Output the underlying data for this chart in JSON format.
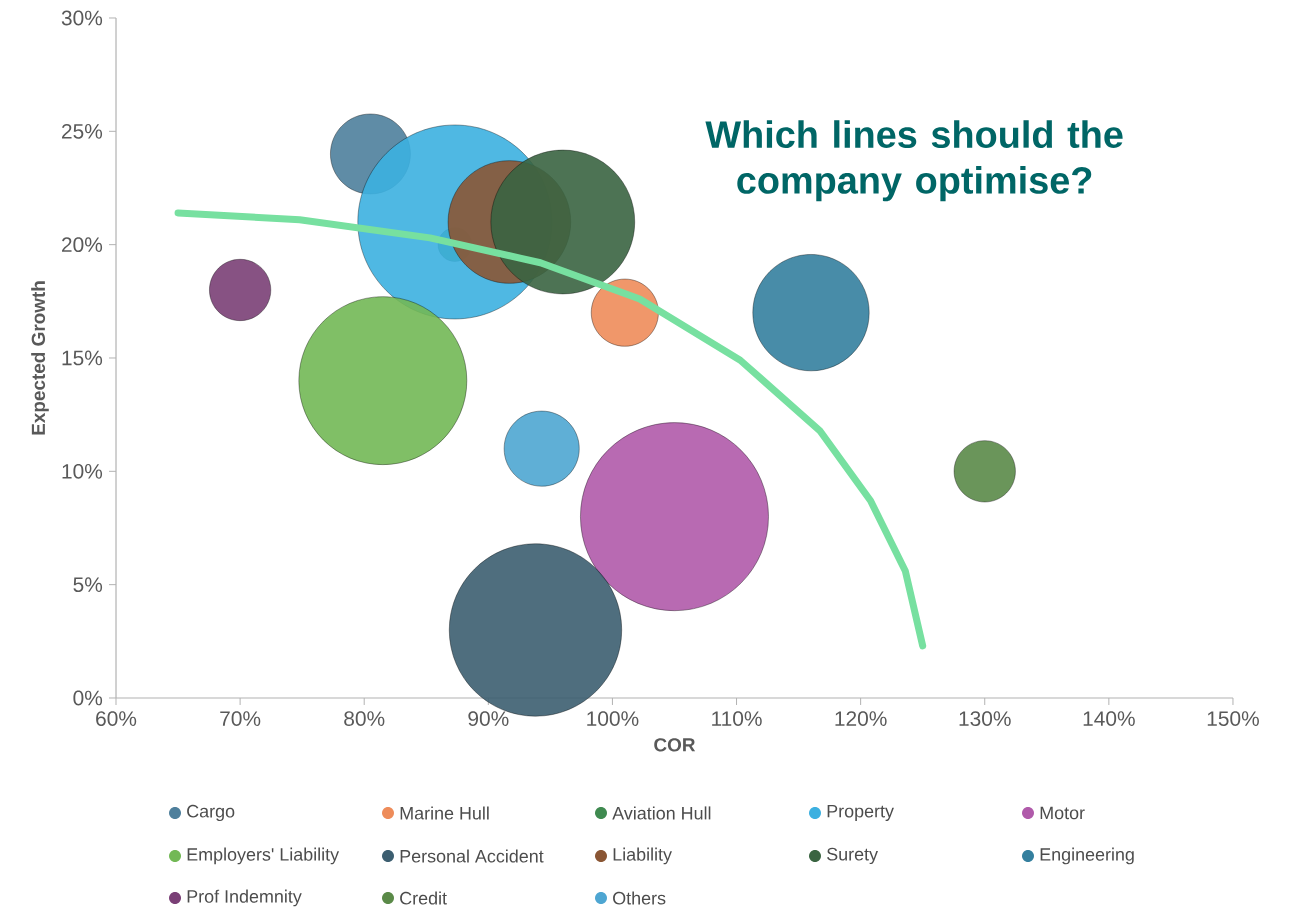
{
  "chart_data": {
    "type": "bubble",
    "xlabel": "COR",
    "ylabel": "Expected Growth",
    "annotations": [
      "Which lines should the company optimise?"
    ],
    "xlim": [
      60,
      150
    ],
    "ylim": [
      0,
      30
    ],
    "xticks": [
      {
        "value": 60,
        "label": "60%"
      },
      {
        "value": 70,
        "label": "70%"
      },
      {
        "value": 80,
        "label": "80%"
      },
      {
        "value": 90,
        "label": "90%"
      },
      {
        "value": 100,
        "label": "100%"
      },
      {
        "value": 110,
        "label": "110%"
      },
      {
        "value": 120,
        "label": "120%"
      },
      {
        "value": 130,
        "label": "130%"
      },
      {
        "value": 140,
        "label": "140%"
      },
      {
        "value": 150,
        "label": "150%"
      }
    ],
    "yticks": [
      {
        "value": 0,
        "label": "0%"
      },
      {
        "value": 5,
        "label": "5%"
      },
      {
        "value": 10,
        "label": "10%"
      },
      {
        "value": 15,
        "label": "15%"
      },
      {
        "value": 20,
        "label": "20%"
      },
      {
        "value": 25,
        "label": "25%"
      },
      {
        "value": 30,
        "label": "30%"
      }
    ],
    "legend": "bottom",
    "grid": false,
    "series": [
      {
        "name": "Cargo",
        "color": "#4e7f9c",
        "x": [
          80.5
        ],
        "values": [
          24
        ],
        "sizes": [
          0.17
        ]
      },
      {
        "name": "Marine Hull",
        "color": "#ee8c5a",
        "x": [
          101
        ],
        "values": [
          17
        ],
        "sizes": [
          0.12
        ]
      },
      {
        "name": "Aviation Hull",
        "color": "#3f8a50",
        "x": [
          87.3
        ],
        "values": [
          20
        ],
        "sizes": [
          0.03
        ]
      },
      {
        "name": "Property",
        "color": "#3cb0e0",
        "x": [
          87.3
        ],
        "values": [
          21
        ],
        "sizes": [
          1
        ]
      },
      {
        "name": "Motor",
        "color": "#b05aaa",
        "x": [
          105
        ],
        "values": [
          8
        ],
        "sizes": [
          0.94
        ]
      },
      {
        "name": "Employers' Liability",
        "color": "#72b855",
        "x": [
          81.5
        ],
        "values": [
          14
        ],
        "sizes": [
          0.75
        ]
      },
      {
        "name": "Personal Accident",
        "color": "#3c5e70",
        "x": [
          93.8
        ],
        "values": [
          3
        ],
        "sizes": [
          0.79
        ]
      },
      {
        "name": "Liability",
        "color": "#8a5634",
        "x": [
          91.7
        ],
        "values": [
          21
        ],
        "sizes": [
          0.4
        ]
      },
      {
        "name": "Surety",
        "color": "#3a6441",
        "x": [
          96
        ],
        "values": [
          21
        ],
        "sizes": [
          0.55
        ]
      },
      {
        "name": "Engineering",
        "color": "#347f9e",
        "x": [
          116
        ],
        "values": [
          17
        ],
        "sizes": [
          0.36
        ]
      },
      {
        "name": "Prof Indemnity",
        "color": "#7a3f76",
        "x": [
          70
        ],
        "values": [
          18
        ],
        "sizes": [
          0.1
        ]
      },
      {
        "name": "Credit",
        "color": "#5a8a48",
        "x": [
          130
        ],
        "values": [
          10
        ],
        "sizes": [
          0.1
        ]
      },
      {
        "name": "Others",
        "color": "#4ea6d2",
        "x": [
          94.3
        ],
        "values": [
          11
        ],
        "sizes": [
          0.15
        ]
      },
      {
        "type": "line",
        "color": "#77e0a0",
        "x": [
          65,
          74.8,
          85.3,
          94.2,
          102.2,
          110.3,
          116.7,
          120.8,
          123.6,
          125
        ],
        "values": [
          21.4,
          21.1,
          20.3,
          19.2,
          17.6,
          14.9,
          11.8,
          8.7,
          5.6,
          2.3
        ]
      }
    ]
  }
}
